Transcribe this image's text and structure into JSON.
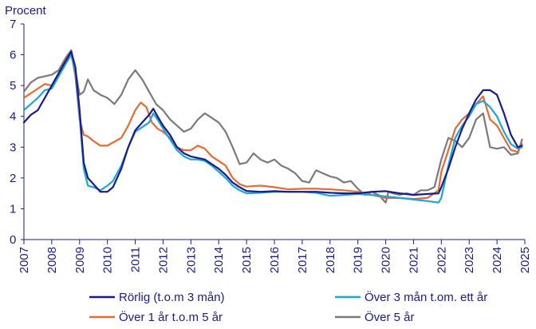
{
  "chart_data": {
    "type": "line",
    "ylabel": "Procent",
    "ylim": [
      0,
      7
    ],
    "yticks": [
      "0",
      "1",
      "2",
      "3",
      "4",
      "5",
      "6",
      "7"
    ],
    "xlim": [
      2007,
      2025
    ],
    "xticks": [
      "2007",
      "2008",
      "2009",
      "2010",
      "2011",
      "2012",
      "2013",
      "2014",
      "2015",
      "2016",
      "2017",
      "2018",
      "2019",
      "2020",
      "2021",
      "2022",
      "2023",
      "2024",
      "2025"
    ],
    "grid": false,
    "legend_position": "bottom",
    "series": [
      {
        "name": "Rörlig (t.o.m 3 mån)",
        "color": "#1a1a8c",
        "points": [
          [
            2007.0,
            3.8
          ],
          [
            2007.25,
            4.05
          ],
          [
            2007.5,
            4.2
          ],
          [
            2007.75,
            4.6
          ],
          [
            2008.0,
            5.0
          ],
          [
            2008.25,
            5.4
          ],
          [
            2008.5,
            5.8
          ],
          [
            2008.7,
            6.1
          ],
          [
            2008.85,
            5.6
          ],
          [
            2009.0,
            4.2
          ],
          [
            2009.15,
            2.5
          ],
          [
            2009.3,
            2.0
          ],
          [
            2009.5,
            1.8
          ],
          [
            2009.75,
            1.55
          ],
          [
            2010.0,
            1.55
          ],
          [
            2010.2,
            1.7
          ],
          [
            2010.5,
            2.3
          ],
          [
            2010.75,
            3.0
          ],
          [
            2011.0,
            3.55
          ],
          [
            2011.25,
            3.8
          ],
          [
            2011.5,
            4.05
          ],
          [
            2011.65,
            4.25
          ],
          [
            2011.8,
            4.0
          ],
          [
            2012.0,
            3.7
          ],
          [
            2012.25,
            3.4
          ],
          [
            2012.5,
            3.0
          ],
          [
            2012.75,
            2.8
          ],
          [
            2013.0,
            2.7
          ],
          [
            2013.25,
            2.65
          ],
          [
            2013.5,
            2.6
          ],
          [
            2013.75,
            2.45
          ],
          [
            2014.0,
            2.3
          ],
          [
            2014.25,
            2.1
          ],
          [
            2014.5,
            1.85
          ],
          [
            2014.75,
            1.7
          ],
          [
            2015.0,
            1.58
          ],
          [
            2015.5,
            1.55
          ],
          [
            2016.0,
            1.57
          ],
          [
            2016.5,
            1.55
          ],
          [
            2017.0,
            1.55
          ],
          [
            2017.5,
            1.55
          ],
          [
            2018.0,
            1.52
          ],
          [
            2018.5,
            1.5
          ],
          [
            2019.0,
            1.5
          ],
          [
            2019.5,
            1.55
          ],
          [
            2020.0,
            1.57
          ],
          [
            2020.5,
            1.5
          ],
          [
            2021.0,
            1.45
          ],
          [
            2021.5,
            1.48
          ],
          [
            2021.9,
            1.5
          ],
          [
            2022.0,
            1.7
          ],
          [
            2022.25,
            2.3
          ],
          [
            2022.5,
            3.0
          ],
          [
            2022.75,
            3.6
          ],
          [
            2023.0,
            4.1
          ],
          [
            2023.25,
            4.55
          ],
          [
            2023.5,
            4.85
          ],
          [
            2023.75,
            4.85
          ],
          [
            2024.0,
            4.7
          ],
          [
            2024.25,
            4.1
          ],
          [
            2024.5,
            3.4
          ],
          [
            2024.75,
            3.0
          ],
          [
            2024.9,
            3.05
          ]
        ]
      },
      {
        "name": "Över 3 mån t.om. ett år",
        "color": "#19a6d9",
        "points": [
          [
            2007.0,
            4.2
          ],
          [
            2007.25,
            4.4
          ],
          [
            2007.5,
            4.6
          ],
          [
            2007.75,
            4.85
          ],
          [
            2008.0,
            4.9
          ],
          [
            2008.25,
            5.3
          ],
          [
            2008.5,
            5.7
          ],
          [
            2008.7,
            6.0
          ],
          [
            2008.85,
            5.4
          ],
          [
            2009.0,
            4.0
          ],
          [
            2009.15,
            2.3
          ],
          [
            2009.3,
            1.75
          ],
          [
            2009.5,
            1.7
          ],
          [
            2009.75,
            1.6
          ],
          [
            2010.0,
            1.75
          ],
          [
            2010.2,
            1.9
          ],
          [
            2010.5,
            2.4
          ],
          [
            2010.75,
            3.0
          ],
          [
            2011.0,
            3.5
          ],
          [
            2011.25,
            3.65
          ],
          [
            2011.5,
            3.8
          ],
          [
            2011.65,
            4.1
          ],
          [
            2011.8,
            3.9
          ],
          [
            2012.0,
            3.6
          ],
          [
            2012.25,
            3.25
          ],
          [
            2012.5,
            2.9
          ],
          [
            2012.75,
            2.7
          ],
          [
            2013.0,
            2.6
          ],
          [
            2013.25,
            2.6
          ],
          [
            2013.5,
            2.55
          ],
          [
            2013.75,
            2.4
          ],
          [
            2014.0,
            2.2
          ],
          [
            2014.25,
            2.0
          ],
          [
            2014.5,
            1.75
          ],
          [
            2014.75,
            1.6
          ],
          [
            2015.0,
            1.5
          ],
          [
            2015.5,
            1.52
          ],
          [
            2016.0,
            1.55
          ],
          [
            2016.5,
            1.55
          ],
          [
            2017.0,
            1.55
          ],
          [
            2017.5,
            1.52
          ],
          [
            2018.0,
            1.42
          ],
          [
            2018.5,
            1.45
          ],
          [
            2019.0,
            1.48
          ],
          [
            2019.5,
            1.45
          ],
          [
            2020.0,
            1.4
          ],
          [
            2020.5,
            1.35
          ],
          [
            2021.0,
            1.3
          ],
          [
            2021.5,
            1.25
          ],
          [
            2021.9,
            1.2
          ],
          [
            2022.0,
            1.35
          ],
          [
            2022.25,
            2.4
          ],
          [
            2022.5,
            3.3
          ],
          [
            2022.75,
            3.7
          ],
          [
            2023.0,
            4.0
          ],
          [
            2023.25,
            4.4
          ],
          [
            2023.5,
            4.5
          ],
          [
            2023.75,
            4.3
          ],
          [
            2024.0,
            4.0
          ],
          [
            2024.25,
            3.5
          ],
          [
            2024.5,
            3.1
          ],
          [
            2024.75,
            2.95
          ],
          [
            2024.9,
            3.0
          ]
        ]
      },
      {
        "name": "Över 1 år t.o.m 5 år",
        "color": "#e86a2e",
        "points": [
          [
            2007.0,
            4.6
          ],
          [
            2007.25,
            4.75
          ],
          [
            2007.5,
            4.9
          ],
          [
            2007.75,
            5.05
          ],
          [
            2008.0,
            5.0
          ],
          [
            2008.25,
            5.4
          ],
          [
            2008.5,
            5.85
          ],
          [
            2008.7,
            6.05
          ],
          [
            2008.85,
            5.3
          ],
          [
            2009.0,
            3.9
          ],
          [
            2009.15,
            3.4
          ],
          [
            2009.3,
            3.35
          ],
          [
            2009.5,
            3.2
          ],
          [
            2009.75,
            3.05
          ],
          [
            2010.0,
            3.05
          ],
          [
            2010.2,
            3.15
          ],
          [
            2010.5,
            3.3
          ],
          [
            2010.75,
            3.7
          ],
          [
            2011.0,
            4.2
          ],
          [
            2011.2,
            4.45
          ],
          [
            2011.4,
            4.3
          ],
          [
            2011.6,
            3.8
          ],
          [
            2011.8,
            3.6
          ],
          [
            2012.0,
            3.5
          ],
          [
            2012.25,
            3.3
          ],
          [
            2012.5,
            3.0
          ],
          [
            2012.75,
            2.9
          ],
          [
            2013.0,
            2.9
          ],
          [
            2013.25,
            3.05
          ],
          [
            2013.5,
            2.95
          ],
          [
            2013.75,
            2.7
          ],
          [
            2014.0,
            2.55
          ],
          [
            2014.25,
            2.4
          ],
          [
            2014.5,
            2.0
          ],
          [
            2014.75,
            1.8
          ],
          [
            2015.0,
            1.72
          ],
          [
            2015.5,
            1.75
          ],
          [
            2016.0,
            1.7
          ],
          [
            2016.5,
            1.63
          ],
          [
            2017.0,
            1.65
          ],
          [
            2017.5,
            1.65
          ],
          [
            2018.0,
            1.63
          ],
          [
            2018.5,
            1.6
          ],
          [
            2019.0,
            1.55
          ],
          [
            2019.5,
            1.45
          ],
          [
            2020.0,
            1.35
          ],
          [
            2020.5,
            1.35
          ],
          [
            2021.0,
            1.32
          ],
          [
            2021.5,
            1.35
          ],
          [
            2021.9,
            1.6
          ],
          [
            2022.0,
            2.2
          ],
          [
            2022.25,
            2.9
          ],
          [
            2022.5,
            3.6
          ],
          [
            2022.75,
            3.9
          ],
          [
            2023.0,
            4.1
          ],
          [
            2023.25,
            4.4
          ],
          [
            2023.5,
            4.65
          ],
          [
            2023.75,
            3.9
          ],
          [
            2024.0,
            3.7
          ],
          [
            2024.25,
            3.3
          ],
          [
            2024.5,
            2.9
          ],
          [
            2024.75,
            2.85
          ],
          [
            2024.9,
            3.1
          ]
        ]
      },
      {
        "name": "Över 5 år",
        "color": "#7a7a7a",
        "points": [
          [
            2007.0,
            4.8
          ],
          [
            2007.25,
            5.1
          ],
          [
            2007.5,
            5.25
          ],
          [
            2007.75,
            5.3
          ],
          [
            2008.0,
            5.35
          ],
          [
            2008.25,
            5.5
          ],
          [
            2008.5,
            5.9
          ],
          [
            2008.7,
            6.15
          ],
          [
            2008.85,
            5.5
          ],
          [
            2009.0,
            4.7
          ],
          [
            2009.15,
            4.8
          ],
          [
            2009.3,
            5.2
          ],
          [
            2009.5,
            4.85
          ],
          [
            2009.75,
            4.7
          ],
          [
            2010.0,
            4.6
          ],
          [
            2010.25,
            4.4
          ],
          [
            2010.5,
            4.7
          ],
          [
            2010.75,
            5.2
          ],
          [
            2011.0,
            5.5
          ],
          [
            2011.25,
            5.2
          ],
          [
            2011.5,
            4.8
          ],
          [
            2011.75,
            4.4
          ],
          [
            2012.0,
            4.2
          ],
          [
            2012.25,
            3.9
          ],
          [
            2012.5,
            3.7
          ],
          [
            2012.75,
            3.5
          ],
          [
            2013.0,
            3.6
          ],
          [
            2013.25,
            3.9
          ],
          [
            2013.5,
            4.1
          ],
          [
            2013.75,
            3.95
          ],
          [
            2014.0,
            3.8
          ],
          [
            2014.25,
            3.5
          ],
          [
            2014.5,
            3.0
          ],
          [
            2014.75,
            2.45
          ],
          [
            2015.0,
            2.5
          ],
          [
            2015.25,
            2.8
          ],
          [
            2015.5,
            2.6
          ],
          [
            2015.75,
            2.5
          ],
          [
            2016.0,
            2.6
          ],
          [
            2016.25,
            2.4
          ],
          [
            2016.5,
            2.3
          ],
          [
            2016.75,
            2.15
          ],
          [
            2017.0,
            1.9
          ],
          [
            2017.25,
            1.85
          ],
          [
            2017.5,
            2.25
          ],
          [
            2017.75,
            2.15
          ],
          [
            2018.0,
            2.05
          ],
          [
            2018.25,
            2.0
          ],
          [
            2018.5,
            1.85
          ],
          [
            2018.75,
            1.9
          ],
          [
            2019.0,
            1.65
          ],
          [
            2019.25,
            1.45
          ],
          [
            2019.5,
            1.55
          ],
          [
            2019.75,
            1.45
          ],
          [
            2020.0,
            1.2
          ],
          [
            2020.1,
            1.55
          ],
          [
            2020.25,
            1.5
          ],
          [
            2020.5,
            1.45
          ],
          [
            2020.75,
            1.5
          ],
          [
            2021.0,
            1.45
          ],
          [
            2021.25,
            1.6
          ],
          [
            2021.5,
            1.6
          ],
          [
            2021.75,
            1.7
          ],
          [
            2022.0,
            2.6
          ],
          [
            2022.25,
            3.3
          ],
          [
            2022.5,
            3.2
          ],
          [
            2022.75,
            3.0
          ],
          [
            2023.0,
            3.3
          ],
          [
            2023.25,
            3.9
          ],
          [
            2023.5,
            4.1
          ],
          [
            2023.75,
            3.0
          ],
          [
            2024.0,
            2.95
          ],
          [
            2024.25,
            3.0
          ],
          [
            2024.5,
            2.75
          ],
          [
            2024.75,
            2.8
          ],
          [
            2024.9,
            3.25
          ]
        ]
      }
    ]
  }
}
